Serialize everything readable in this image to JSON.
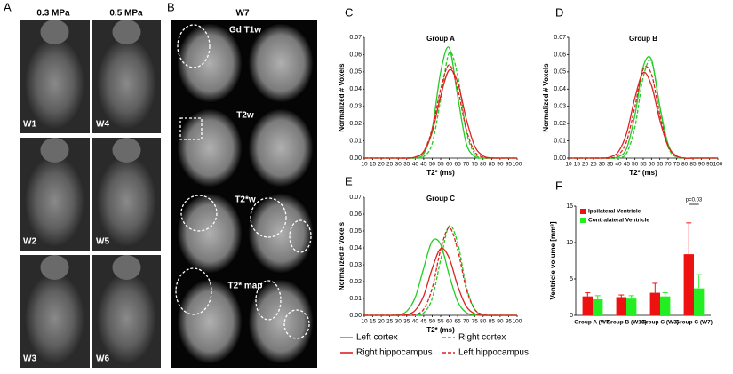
{
  "figure_panels": [
    {
      "panel": "A",
      "column_labels": [
        "0.3 MPa",
        "0.5 MPa"
      ],
      "image_labels": [
        "W1",
        "W4",
        "W2",
        "W5",
        "W3",
        "W6"
      ]
    },
    {
      "panel": "B",
      "title": "W7",
      "row_labels": [
        "Gd T1w",
        "T2w",
        "T2*w",
        "T2* map"
      ]
    }
  ],
  "chart_data": [
    {
      "type": "line",
      "panel": "C",
      "title": "Group A",
      "x_label": "T2* (ms)",
      "y_label": "Normalized # Voxels",
      "x": [
        10,
        15,
        20,
        25,
        30,
        35,
        40,
        45,
        50,
        55,
        60,
        65,
        70,
        75,
        80,
        85,
        90,
        95,
        100
      ],
      "xlim": [
        10,
        100
      ],
      "xticks": [
        10,
        15,
        20,
        25,
        30,
        35,
        40,
        45,
        50,
        55,
        60,
        65,
        70,
        75,
        80,
        85,
        90,
        95,
        100
      ],
      "ylim": [
        0,
        0.07
      ],
      "yticks": [
        {
          "value": 0,
          "label": "0.00"
        },
        0.01,
        0.02,
        0.03,
        0.04,
        0.05,
        0.06,
        0.07
      ],
      "series": [
        {
          "color": "#22cc22",
          "line_style": "solid",
          "values": [
            0,
            0,
            0,
            0,
            0,
            0,
            0.0002,
            0.0025,
            0.017,
            0.05,
            0.064,
            0.036,
            0.0088,
            0.0009,
            0,
            0,
            0,
            0,
            0
          ]
        },
        {
          "color": "#22cc22",
          "line_style": "dashed",
          "values": [
            0,
            0,
            0,
            0,
            0,
            0,
            0,
            0.0009,
            0.0084,
            0.034,
            0.061,
            0.048,
            0.016,
            0.0024,
            0.0002,
            0,
            0,
            0,
            0
          ]
        },
        {
          "color": "#dd2222",
          "line_style": "solid",
          "values": [
            0,
            0,
            0,
            0,
            0,
            0,
            0.0006,
            0.0038,
            0.015,
            0.036,
            0.051,
            0.044,
            0.023,
            0.007,
            0.0013,
            0.0001,
            0,
            0,
            0
          ]
        },
        {
          "color": "#dd2222",
          "line_style": "dashed",
          "values": [
            0,
            0,
            0,
            0,
            0,
            0,
            0.0005,
            0.0038,
            0.017,
            0.04,
            0.054,
            0.04,
            0.017,
            0.0038,
            0.0005,
            0,
            0,
            0,
            0
          ]
        }
      ]
    },
    {
      "type": "line",
      "panel": "D",
      "title": "Group B",
      "x_label": "T2* (ms)",
      "y_label": "Normalized # Voxels",
      "x": [
        10,
        15,
        20,
        25,
        30,
        35,
        40,
        45,
        50,
        55,
        60,
        65,
        70,
        75,
        80,
        85,
        90,
        95,
        100
      ],
      "xlim": [
        10,
        100
      ],
      "xticks": [
        10,
        15,
        20,
        25,
        30,
        35,
        40,
        45,
        50,
        55,
        60,
        65,
        70,
        75,
        80,
        85,
        90,
        95,
        100
      ],
      "ylim": [
        0,
        0.07
      ],
      "yticks": [
        {
          "value": 0,
          "label": "0.00"
        },
        0.01,
        0.02,
        0.03,
        0.04,
        0.05,
        0.06,
        0.07
      ],
      "series": [
        {
          "color": "#22cc22",
          "line_style": "solid",
          "values": [
            0,
            0,
            0,
            0,
            0,
            0,
            0.0007,
            0.0057,
            0.025,
            0.053,
            0.057,
            0.03,
            0.0081,
            0.0011,
            0,
            0,
            0,
            0,
            0
          ]
        },
        {
          "color": "#22cc22",
          "line_style": "dashed",
          "values": [
            0,
            0,
            0,
            0,
            0,
            0,
            0,
            0.0029,
            0.018,
            0.047,
            0.056,
            0.029,
            0.0065,
            0.0006,
            0,
            0,
            0,
            0,
            0
          ]
        },
        {
          "color": "#dd2222",
          "line_style": "solid",
          "values": [
            0,
            0,
            0,
            0,
            0,
            0.0006,
            0.0037,
            0.0145,
            0.035,
            0.0495,
            0.042,
            0.022,
            0.0068,
            0.0013,
            0,
            0,
            0,
            0,
            0
          ]
        },
        {
          "color": "#dd2222",
          "line_style": "dashed",
          "values": [
            0,
            0,
            0,
            0,
            0,
            0,
            0.0018,
            0.0098,
            0.03,
            0.0515,
            0.0485,
            0.025,
            0.0073,
            0.0012,
            0,
            0,
            0,
            0,
            0
          ]
        }
      ]
    },
    {
      "type": "line",
      "panel": "E",
      "title": "Group C",
      "x_label": "T2* (ms)",
      "y_label": "Normalized # Voxels",
      "legend": "below",
      "x": [
        10,
        15,
        20,
        25,
        30,
        35,
        40,
        45,
        50,
        55,
        60,
        65,
        70,
        75,
        80,
        85,
        90,
        95,
        100
      ],
      "xlim": [
        10,
        100
      ],
      "xticks": [
        10,
        15,
        20,
        25,
        30,
        35,
        40,
        45,
        50,
        55,
        60,
        65,
        70,
        75,
        80,
        85,
        90,
        95,
        100
      ],
      "ylim": [
        0,
        0.07
      ],
      "yticks": [
        {
          "value": 0,
          "label": "0.00"
        },
        0.01,
        0.02,
        0.03,
        0.04,
        0.05,
        0.06,
        0.07
      ],
      "series": [
        {
          "name": "Left cortex",
          "color": "#22cc22",
          "line_style": "solid",
          "values": [
            0,
            0,
            0,
            0,
            0.0003,
            0.0024,
            0.0106,
            0.028,
            0.044,
            0.042,
            0.024,
            0.0082,
            0.0017,
            0.0002,
            0,
            0,
            0,
            0,
            0
          ]
        },
        {
          "name": "Right cortex",
          "color": "#22cc22",
          "line_style": "dashed",
          "values": [
            0,
            0,
            0,
            0,
            0,
            0,
            0,
            0.0015,
            0.01,
            0.033,
            0.053,
            0.043,
            0.0175,
            0.0036,
            0.0004,
            0,
            0,
            0,
            0
          ]
        },
        {
          "name": "Right hippocampus",
          "color": "#dd2222",
          "line_style": "solid",
          "values": [
            0,
            0,
            0,
            0,
            0,
            0.0004,
            0.0029,
            0.0116,
            0.0277,
            0.0396,
            0.034,
            0.0175,
            0.0054,
            0.001,
            0,
            0,
            0,
            0,
            0
          ]
        },
        {
          "name": "Left hippocampus",
          "color": "#dd2222",
          "line_style": "dashed",
          "values": [
            0,
            0,
            0,
            0,
            0,
            0,
            0.0005,
            0.0036,
            0.016,
            0.039,
            0.052,
            0.039,
            0.016,
            0.0036,
            0.0005,
            0,
            0,
            0,
            0
          ]
        }
      ]
    },
    {
      "type": "bar",
      "panel": "F",
      "y_label": "Ventricle  volume [mm³]",
      "legend": "upper left",
      "categories": [
        "Group A (W7)",
        "Group B (W13)",
        "Group C (W3)",
        "Group C (W7)"
      ],
      "ylim": [
        0,
        15
      ],
      "yticks": [
        0,
        5,
        10,
        15
      ],
      "series": [
        {
          "name": "Ipsilateral Ventricle",
          "color": "#ee1111",
          "values": [
            2.6,
            2.5,
            3.1,
            8.4
          ],
          "errors": [
            0.5,
            0.3,
            1.3,
            4.3
          ]
        },
        {
          "name": "Contralateral Ventricle",
          "color": "#22ee22",
          "values": [
            2.2,
            2.3,
            2.6,
            3.7
          ],
          "errors": [
            0.5,
            0.4,
            0.5,
            1.9
          ]
        }
      ],
      "annotation": "p=0.03"
    }
  ]
}
